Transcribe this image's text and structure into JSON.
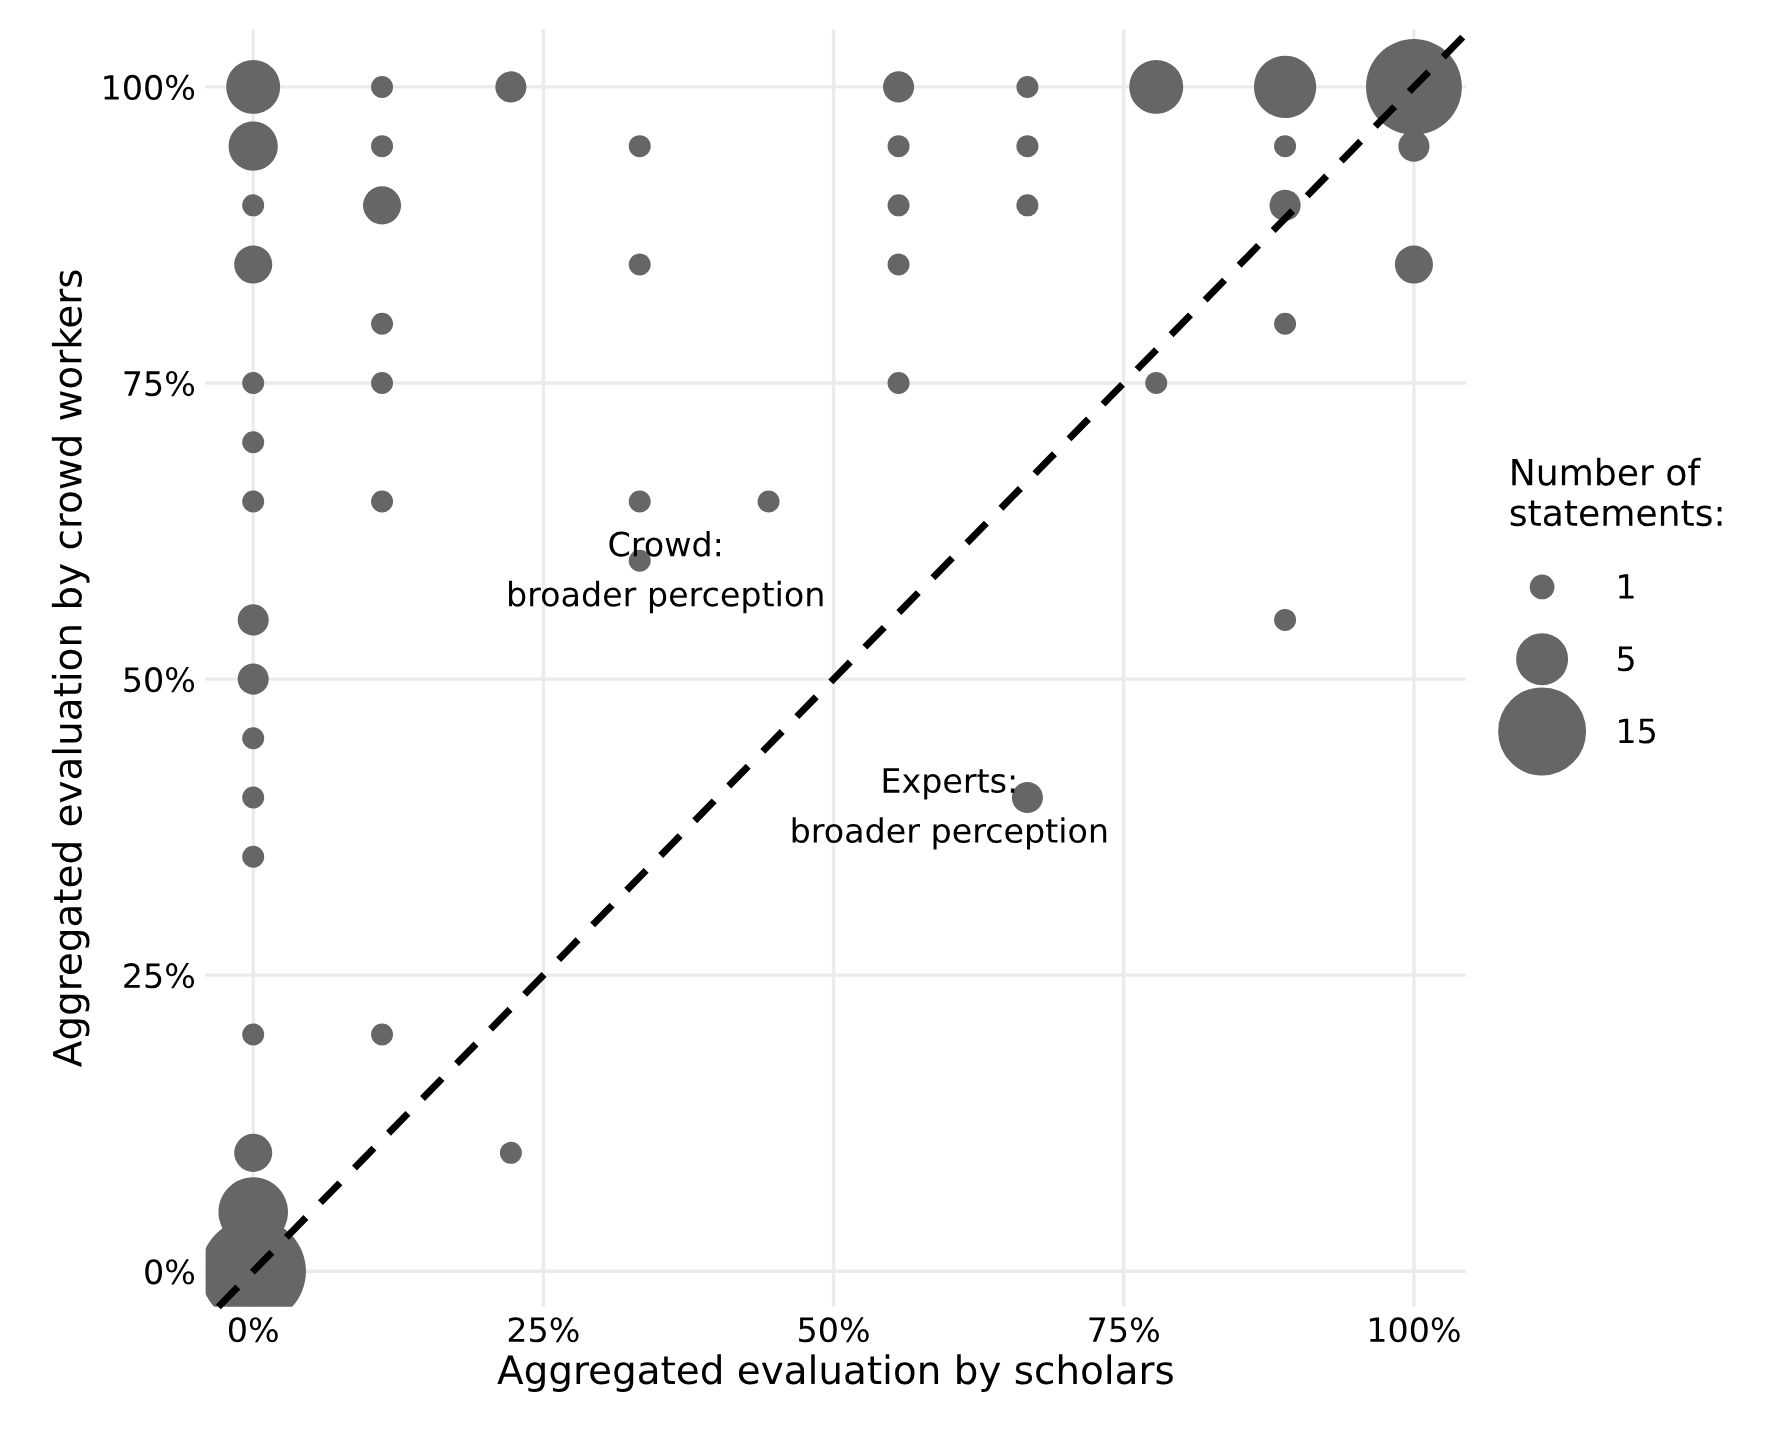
{
  "chart_data": {
    "type": "bubble",
    "xlabel": "Aggregated evaluation by scholars",
    "ylabel": "Aggregated evaluation by crowd workers",
    "legend_title": "Number of\nstatements:",
    "size_legend": [
      1,
      5,
      15
    ],
    "grid": true,
    "xlim": [
      -4.1,
      104.5
    ],
    "ylim": [
      -3,
      104.9
    ],
    "xticks": [
      {
        "value": 0,
        "label": "0%"
      },
      {
        "value": 25,
        "label": "25%"
      },
      {
        "value": 50,
        "label": "50%"
      },
      {
        "value": 75,
        "label": "75%"
      },
      {
        "value": 100,
        "label": "100%"
      }
    ],
    "yticks": [
      {
        "value": 0,
        "label": "0%"
      },
      {
        "value": 25,
        "label": "25%"
      },
      {
        "value": 50,
        "label": "50%"
      },
      {
        "value": 75,
        "label": "75%"
      },
      {
        "value": 100,
        "label": "100%"
      }
    ],
    "annotations": [
      "Crowd:\nbroader perception",
      "Experts:\nbroader perception"
    ],
    "series": [
      {
        "color": "#666666",
        "x": [
          0,
          0,
          0,
          0,
          0,
          0,
          0,
          0,
          0,
          0,
          0,
          0,
          0,
          0,
          0,
          0,
          11.1,
          11.1,
          11.1,
          11.1,
          11.1,
          11.1,
          11.1,
          22.2,
          22.2,
          33.3,
          33.3,
          33.3,
          33.3,
          44.4,
          55.6,
          55.6,
          55.6,
          55.6,
          55.6,
          66.7,
          66.7,
          66.7,
          66.7,
          77.8,
          77.8,
          88.9,
          88.9,
          88.9,
          88.9,
          88.9,
          100,
          100,
          100
        ],
        "values": [
          100,
          95,
          90,
          85,
          75,
          70,
          65,
          55,
          50,
          45,
          40,
          35,
          20,
          10,
          5,
          0,
          100,
          95,
          90,
          80,
          75,
          65,
          20,
          100,
          10,
          95,
          85,
          65,
          60,
          65,
          100,
          95,
          90,
          85,
          75,
          100,
          95,
          90,
          40,
          100,
          75,
          100,
          95,
          90,
          80,
          55,
          100,
          95,
          85
        ],
        "sizes": [
          6,
          5,
          1,
          3,
          1,
          1,
          1,
          2,
          2,
          1,
          1,
          1,
          1,
          3,
          10,
          23,
          1,
          1,
          3,
          1,
          1,
          1,
          1,
          2,
          1,
          1,
          1,
          1,
          1,
          1,
          2,
          1,
          1,
          1,
          1,
          1,
          1,
          1,
          2,
          6,
          1,
          8,
          1,
          2,
          1,
          1,
          19,
          2,
          3
        ]
      },
      {
        "type": "line",
        "color": "#000000",
        "line_style": "dashed",
        "marker": "none",
        "x": [
          -3,
          104.5
        ],
        "values": [
          -3,
          104.5
        ]
      }
    ]
  }
}
